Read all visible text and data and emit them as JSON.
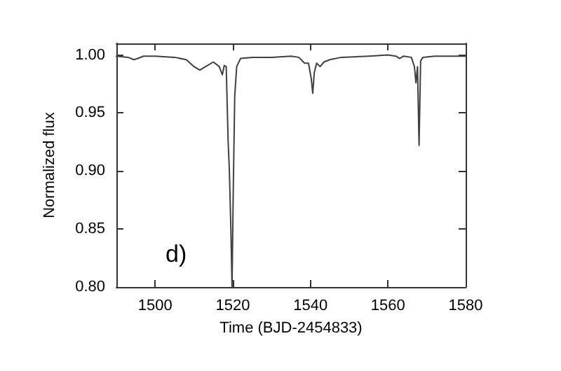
{
  "chart_data": {
    "type": "line",
    "xlabel": "Time (BJD-2454833)",
    "ylabel": "Normalized flux",
    "xlim": [
      1490,
      1580
    ],
    "xticks": [
      1500,
      1520,
      1540,
      1560,
      1580
    ],
    "ylim": [
      0.8,
      1.01
    ],
    "yticks": [
      {
        "value": 0.8,
        "label": "0.80"
      },
      0.85,
      {
        "value": 0.9,
        "label": "0.90"
      },
      0.95,
      {
        "value": 1.0,
        "label": "1.00"
      }
    ],
    "grid": false,
    "marker": "none",
    "annotations": [
      "d)"
    ],
    "series": [
      {
        "color": "#404040",
        "x": [
          1490,
          1493,
          1494.5,
          1495.5,
          1497,
          1500,
          1505,
          1508,
          1510,
          1511.5,
          1513,
          1515,
          1516.5,
          1517.3,
          1517.8,
          1518.3,
          1518.8,
          1519.1,
          1519.5,
          1519.8,
          1520.1,
          1520.5,
          1521,
          1522,
          1525,
          1530,
          1535,
          1537,
          1538.5,
          1539.5,
          1540.2,
          1540.6,
          1541,
          1541.6,
          1542.5,
          1543.5,
          1545,
          1548,
          1555,
          1560,
          1562,
          1563,
          1564,
          1566,
          1566.8,
          1567.2,
          1567.6,
          1568,
          1568.4,
          1569,
          1572,
          1576,
          1580
        ],
        "values": [
          0.999,
          0.998,
          0.996,
          0.997,
          0.999,
          0.999,
          0.998,
          0.996,
          0.99,
          0.987,
          0.99,
          0.994,
          0.99,
          0.983,
          0.991,
          0.99,
          0.925,
          0.902,
          0.85,
          0.8,
          0.88,
          0.965,
          0.99,
          0.997,
          0.998,
          0.998,
          0.999,
          0.998,
          0.993,
          0.993,
          0.98,
          0.967,
          0.985,
          0.993,
          0.99,
          0.994,
          0.996,
          0.998,
          0.999,
          1.0,
          0.999,
          0.997,
          0.999,
          0.998,
          0.99,
          0.976,
          0.99,
          0.922,
          0.995,
          0.998,
          0.999,
          0.999,
          0.999
        ]
      }
    ]
  }
}
